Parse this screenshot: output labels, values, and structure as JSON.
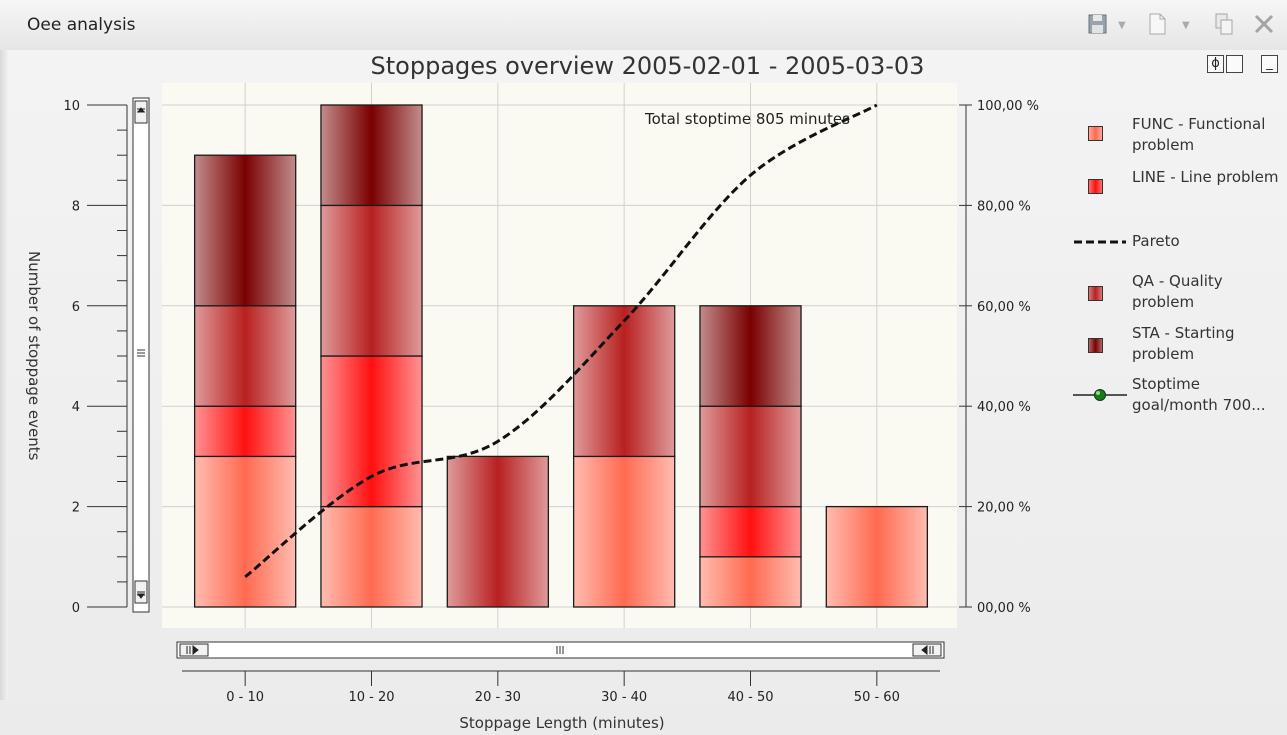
{
  "window": {
    "title": "Oee analysis",
    "tools": [
      "save-icon",
      "new-document-icon",
      "copy-icon",
      "close-icon"
    ]
  },
  "chart_controls": [
    "ɸ",
    "",
    "_"
  ],
  "chart_data": {
    "type": "bar",
    "stacked": true,
    "title": "Stoppages overview 2005-02-01 - 2005-03-03",
    "xlabel": "Stoppage Length (minutes)",
    "ylabel": "Number of stoppage events",
    "annotation": "Total stoptime 805 minutes",
    "categories": [
      "0 - 10",
      "10 - 20",
      "20 - 30",
      "30 - 40",
      "40 - 50",
      "50 - 60"
    ],
    "ylim": [
      0,
      10
    ],
    "y_ticks": [
      "0",
      "2",
      "4",
      "6",
      "8",
      "10"
    ],
    "y2lim": [
      0,
      100
    ],
    "y2_ticks": [
      "00,00 %",
      "20,00 %",
      "40,00 %",
      "60,00 %",
      "80,00 %",
      "100,00 %"
    ],
    "grid": true,
    "legend_position": "right",
    "series": [
      {
        "name": "FUNC - Functional problem",
        "values": [
          3,
          2,
          0,
          3,
          1,
          2
        ],
        "color": "#ff6a50"
      },
      {
        "name": "LINE - Line problem",
        "values": [
          1,
          3,
          0,
          0,
          1,
          0
        ],
        "color": "#ff1010"
      },
      {
        "name": "QA - Quality problem",
        "values": [
          2,
          3,
          3,
          3,
          2,
          0
        ],
        "color": "#b82020"
      },
      {
        "name": "STA - Starting problem",
        "values": [
          3,
          2,
          0,
          0,
          2,
          0
        ],
        "color": "#7a0000"
      }
    ],
    "pareto": {
      "name": "Pareto",
      "x": [
        "0 - 10",
        "10 - 20",
        "20 - 30",
        "30 - 40",
        "40 - 50",
        "50 - 60"
      ],
      "y_percent": [
        6,
        26,
        33,
        57,
        86,
        100
      ]
    },
    "extra_legend": [
      {
        "name": "Pareto",
        "symbol": "dashed-line"
      },
      {
        "name": "Stoptime goal/month 700...",
        "symbol": "line-green-dot",
        "color": "#1a7a1a"
      }
    ]
  }
}
